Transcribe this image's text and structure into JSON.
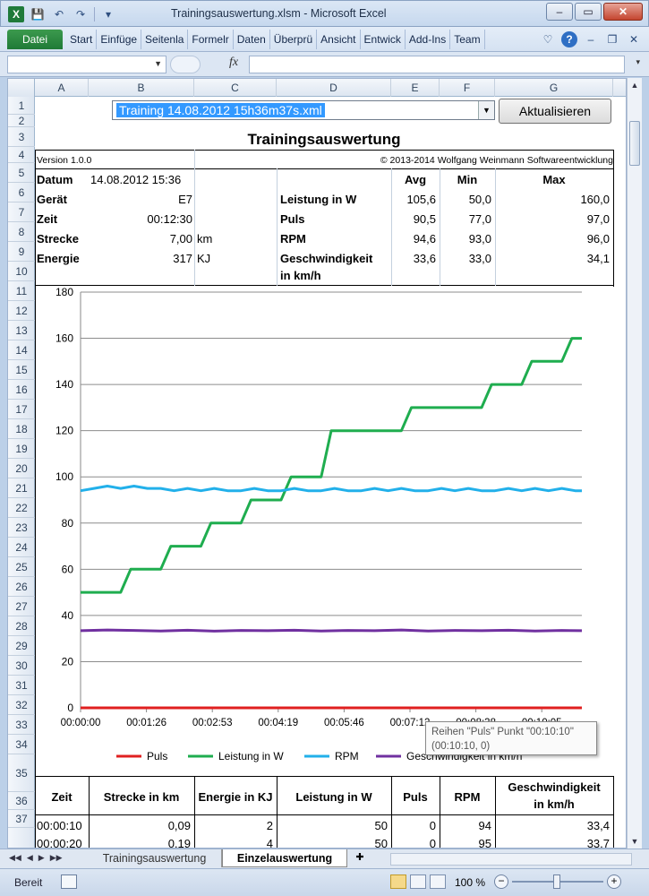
{
  "window": {
    "title": "Trainingsauswertung.xlsm  -  Microsoft Excel",
    "app_icon": "X"
  },
  "ribbon": {
    "file_tab": "Datei",
    "tabs": [
      "Start",
      "Einfüge",
      "Seitenla",
      "Formelr",
      "Daten",
      "Überprü",
      "Ansicht",
      "Entwick",
      "Add-Ins",
      "Team"
    ],
    "help": "?"
  },
  "formula_bar": {
    "name_box": "",
    "fx_label": "fx",
    "formula": ""
  },
  "columns": [
    "A",
    "B",
    "C",
    "D",
    "E",
    "F",
    "G"
  ],
  "rows": [
    "1",
    "2",
    "3",
    "4",
    "5",
    "6",
    "7",
    "8",
    "9",
    "10",
    "11",
    "12",
    "13",
    "14",
    "15",
    "16",
    "17",
    "18",
    "19",
    "20",
    "21",
    "22",
    "23",
    "24",
    "25",
    "26",
    "27",
    "28",
    "29",
    "30",
    "31",
    "32",
    "33",
    "34",
    "35",
    "36",
    "37"
  ],
  "sheet": {
    "file_select": "Training 14.08.2012 15h36m37s.xml",
    "refresh_button": "Aktualisieren",
    "title": "Trainingsauswertung",
    "version": "Version 1.0.0",
    "copyright": "© 2013-2014 Wolfgang Weinmann Softwareentwicklung",
    "info": {
      "datum_label": "Datum",
      "datum_value": "14.08.2012 15:36",
      "geraet_label": "Gerät",
      "geraet_value": "E7",
      "zeit_label": "Zeit",
      "zeit_value": "00:12:30",
      "strecke_label": "Strecke",
      "strecke_value": "7,00",
      "strecke_unit": "km",
      "energie_label": "Energie",
      "energie_value": "317",
      "energie_unit": "KJ"
    },
    "stats_header": {
      "avg": "Avg",
      "min": "Min",
      "max": "Max"
    },
    "stats": [
      {
        "label": "Leistung in W",
        "avg": "105,6",
        "min": "50,0",
        "max": "160,0"
      },
      {
        "label": "Puls",
        "avg": "90,5",
        "min": "77,0",
        "max": "97,0"
      },
      {
        "label": "RPM",
        "avg": "94,6",
        "min": "93,0",
        "max": "96,0"
      },
      {
        "label": "Geschwindigkeit",
        "label2": "in km/h",
        "avg": "33,6",
        "min": "33,0",
        "max": "34,1"
      }
    ],
    "table_headers": [
      "Zeit",
      "Strecke in km",
      "Energie in KJ",
      "Leistung in W",
      "Puls",
      "RPM",
      "Geschwindigkeit",
      "in km/h"
    ],
    "table_rows": [
      [
        "00:00:10",
        "0,09",
        "2",
        "50",
        "0",
        "94",
        "33,4"
      ],
      [
        "00:00:20",
        "0,19",
        "4",
        "50",
        "0",
        "95",
        "33,7"
      ]
    ]
  },
  "tooltip": {
    "line1": "Reihen \"Puls\" Punkt \"00:10:10\"",
    "line2": "(00:10:10, 0)"
  },
  "sheet_tabs": [
    "Trainingsauswertung",
    "Einzelauswertung"
  ],
  "status": {
    "ready": "Bereit",
    "zoom": "100 %"
  },
  "chart_data": {
    "type": "line",
    "ylim": [
      0,
      180
    ],
    "yticks": [
      0,
      20,
      40,
      60,
      80,
      100,
      120,
      140,
      160,
      180
    ],
    "xticks": [
      "00:00:00",
      "00:01:26",
      "00:02:53",
      "00:04:19",
      "00:05:46",
      "00:07:12",
      "00:08:38",
      "00:10:05"
    ],
    "x_seconds_max": 750,
    "legend": "bottom",
    "series": [
      {
        "name": "Puls",
        "color": "#e02020",
        "values": [
          [
            0,
            0
          ],
          [
            750,
            0
          ]
        ]
      },
      {
        "name": "Leistung in W",
        "color": "#1fad4f",
        "values": [
          [
            0,
            50
          ],
          [
            60,
            50
          ],
          [
            75,
            60
          ],
          [
            120,
            60
          ],
          [
            135,
            70
          ],
          [
            180,
            70
          ],
          [
            195,
            80
          ],
          [
            240,
            80
          ],
          [
            255,
            90
          ],
          [
            300,
            90
          ],
          [
            315,
            100
          ],
          [
            360,
            100
          ],
          [
            375,
            120
          ],
          [
            480,
            120
          ],
          [
            495,
            130
          ],
          [
            600,
            130
          ],
          [
            615,
            140
          ],
          [
            660,
            140
          ],
          [
            675,
            150
          ],
          [
            720,
            150
          ],
          [
            735,
            160
          ],
          [
            750,
            160
          ]
        ]
      },
      {
        "name": "RPM",
        "color": "#22b0ea",
        "values": [
          [
            0,
            94
          ],
          [
            20,
            95
          ],
          [
            40,
            96
          ],
          [
            60,
            95
          ],
          [
            80,
            96
          ],
          [
            100,
            95
          ],
          [
            120,
            95
          ],
          [
            140,
            94
          ],
          [
            160,
            95
          ],
          [
            180,
            94
          ],
          [
            200,
            95
          ],
          [
            220,
            94
          ],
          [
            240,
            94
          ],
          [
            260,
            95
          ],
          [
            280,
            94
          ],
          [
            300,
            94
          ],
          [
            320,
            95
          ],
          [
            340,
            94
          ],
          [
            360,
            94
          ],
          [
            380,
            95
          ],
          [
            400,
            94
          ],
          [
            420,
            94
          ],
          [
            440,
            95
          ],
          [
            460,
            94
          ],
          [
            480,
            95
          ],
          [
            500,
            94
          ],
          [
            520,
            94
          ],
          [
            540,
            95
          ],
          [
            560,
            94
          ],
          [
            580,
            95
          ],
          [
            600,
            94
          ],
          [
            620,
            94
          ],
          [
            640,
            95
          ],
          [
            660,
            94
          ],
          [
            680,
            95
          ],
          [
            700,
            94
          ],
          [
            720,
            95
          ],
          [
            740,
            94
          ],
          [
            750,
            94
          ]
        ]
      },
      {
        "name": "Geschwindigkeit in km/h",
        "color": "#7030a0",
        "values": [
          [
            0,
            33.4
          ],
          [
            40,
            33.7
          ],
          [
            80,
            33.5
          ],
          [
            120,
            33.3
          ],
          [
            160,
            33.6
          ],
          [
            200,
            33.2
          ],
          [
            240,
            33.5
          ],
          [
            280,
            33.4
          ],
          [
            320,
            33.6
          ],
          [
            360,
            33.3
          ],
          [
            400,
            33.5
          ],
          [
            440,
            33.4
          ],
          [
            480,
            33.7
          ],
          [
            520,
            33.3
          ],
          [
            560,
            33.5
          ],
          [
            600,
            33.4
          ],
          [
            640,
            33.6
          ],
          [
            680,
            33.3
          ],
          [
            720,
            33.5
          ],
          [
            750,
            33.4
          ]
        ]
      }
    ]
  }
}
